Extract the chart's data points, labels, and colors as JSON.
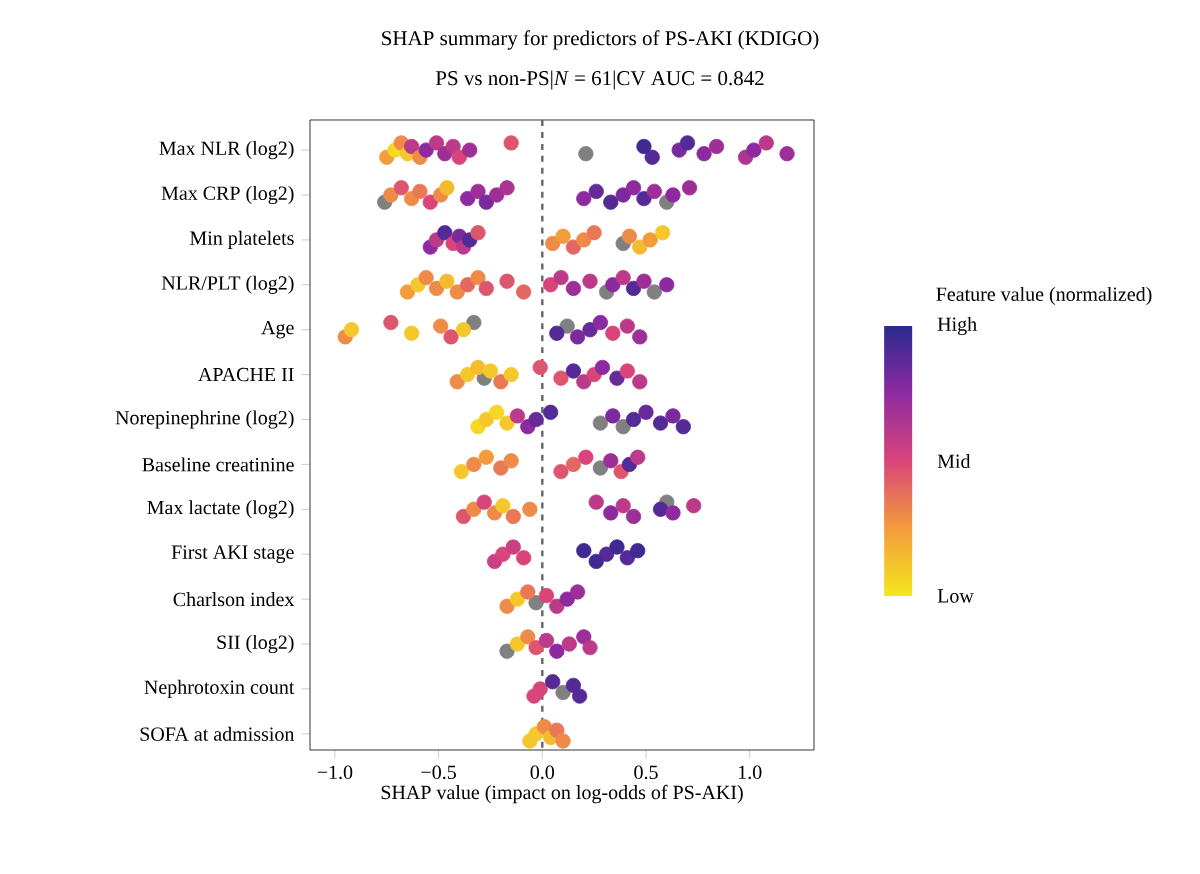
{
  "chart_data": {
    "type": "scatter",
    "title": "SHAP summary for predictors of PS-AKI (KDIGO)",
    "subtitle": "PS vs non-PS|*N* = 61|CV AUC = 0.842",
    "xlabel": "SHAP value (impact on log-odds of PS-AKI)",
    "clabel": "Feature value (normalized)",
    "orientation": "horizontal",
    "marker": "circle",
    "categories": [
      "Max NLR (log2)",
      "Max CRP (log2)",
      "Min platelets",
      "NLR/PLT (log2)",
      "Age",
      "APACHE II",
      "Norepinephrine (log2)",
      "Baseline creatinine",
      "Max lactate (log2)",
      "First AKI stage",
      "Charlson index",
      "SII (log2)",
      "Nephrotoxin count",
      "SOFA at admission"
    ],
    "series": [
      {
        "x": [
          "Max NLR (log2)",
          "Max NLR (log2)",
          "Max NLR (log2)",
          "Max NLR (log2)",
          "Max NLR (log2)",
          "Max NLR (log2)",
          "Max NLR (log2)",
          "Max NLR (log2)",
          "Max NLR (log2)",
          "Max NLR (log2)",
          "Max NLR (log2)",
          "Max NLR (log2)",
          "Max NLR (log2)",
          "Max NLR (log2)",
          "Max NLR (log2)",
          "Max NLR (log2)",
          "Max NLR (log2)",
          "Max NLR (log2)",
          "Max NLR (log2)",
          "Max NLR (log2)",
          "Max NLR (log2)",
          "Max NLR (log2)",
          "Max NLR (log2)",
          "Max NLR (log2)"
        ],
        "values": [
          -0.75,
          -0.71,
          -0.68,
          -0.65,
          -0.63,
          -0.59,
          -0.56,
          -0.51,
          -0.47,
          -0.43,
          -0.4,
          -0.35,
          -0.15,
          0.21,
          0.49,
          0.53,
          0.66,
          0.7,
          0.78,
          0.84,
          0.98,
          1.02,
          1.08,
          1.18
        ],
        "colors": [
          null,
          null,
          null,
          null,
          null,
          null,
          null,
          null,
          null,
          null,
          null,
          null,
          null,
          "#808080",
          null,
          null,
          null,
          null,
          null,
          null,
          null,
          null,
          null,
          null
        ],
        "cvalues": [
          0.25,
          0.05,
          0.3,
          0.1,
          0.6,
          0.3,
          0.75,
          0.6,
          0.7,
          0.6,
          0.5,
          0.7,
          0.45,
          null,
          0.95,
          0.9,
          0.8,
          0.9,
          0.75,
          0.7,
          0.65,
          0.75,
          0.6,
          0.7
        ]
      },
      {
        "x": [
          "Max CRP (log2)",
          "Max CRP (log2)",
          "Max CRP (log2)",
          "Max CRP (log2)",
          "Max CRP (log2)",
          "Max CRP (log2)",
          "Max CRP (log2)",
          "Max CRP (log2)",
          "Max CRP (log2)",
          "Max CRP (log2)",
          "Max CRP (log2)",
          "Max CRP (log2)",
          "Max CRP (log2)",
          "Max CRP (log2)",
          "Max CRP (log2)",
          "Max CRP (log2)",
          "Max CRP (log2)",
          "Max CRP (log2)",
          "Max CRP (log2)",
          "Max CRP (log2)",
          "Max CRP (log2)",
          "Max CRP (log2)",
          "Max CRP (log2)"
        ],
        "values": [
          -0.76,
          -0.73,
          -0.68,
          -0.63,
          -0.59,
          -0.54,
          -0.49,
          -0.46,
          -0.36,
          -0.31,
          -0.27,
          -0.22,
          -0.17,
          0.2,
          0.26,
          0.33,
          0.39,
          0.44,
          0.49,
          0.54,
          0.6,
          0.63,
          0.71
        ],
        "colors": [
          "#808080",
          null,
          null,
          null,
          null,
          null,
          null,
          null,
          null,
          null,
          null,
          null,
          null,
          null,
          null,
          null,
          null,
          null,
          null,
          null,
          "#808080",
          null,
          null
        ],
        "cvalues": [
          null,
          0.3,
          0.45,
          0.3,
          0.35,
          0.5,
          0.3,
          0.15,
          0.75,
          0.7,
          0.8,
          0.7,
          0.65,
          0.75,
          0.85,
          0.9,
          0.8,
          0.75,
          0.9,
          0.7,
          null,
          0.75,
          0.7
        ]
      },
      {
        "x": [
          "Min platelets",
          "Min platelets",
          "Min platelets",
          "Min platelets",
          "Min platelets",
          "Min platelets",
          "Min platelets",
          "Min platelets",
          "Min platelets",
          "Min platelets",
          "Min platelets",
          "Min platelets",
          "Min platelets",
          "Min platelets",
          "Min platelets",
          "Min platelets",
          "Min platelets",
          "Min platelets"
        ],
        "values": [
          -0.54,
          -0.51,
          -0.47,
          -0.43,
          -0.4,
          -0.38,
          -0.35,
          -0.31,
          0.05,
          0.1,
          0.15,
          0.2,
          0.25,
          0.39,
          0.42,
          0.47,
          0.52,
          0.58
        ],
        "colors": [
          null,
          null,
          null,
          null,
          null,
          null,
          null,
          null,
          null,
          null,
          null,
          null,
          null,
          "#808080",
          null,
          null,
          null,
          null
        ],
        "cvalues": [
          0.75,
          0.6,
          0.9,
          0.5,
          0.8,
          0.6,
          0.9,
          0.45,
          0.3,
          0.25,
          0.4,
          0.3,
          0.35,
          null,
          0.3,
          0.15,
          0.25,
          0.1
        ]
      },
      {
        "x": [
          "NLR/PLT (log2)",
          "NLR/PLT (log2)",
          "NLR/PLT (log2)",
          "NLR/PLT (log2)",
          "NLR/PLT (log2)",
          "NLR/PLT (log2)",
          "NLR/PLT (log2)",
          "NLR/PLT (log2)",
          "NLR/PLT (log2)",
          "NLR/PLT (log2)",
          "NLR/PLT (log2)",
          "NLR/PLT (log2)",
          "NLR/PLT (log2)",
          "NLR/PLT (log2)",
          "NLR/PLT (log2)",
          "NLR/PLT (log2)",
          "NLR/PLT (log2)",
          "NLR/PLT (log2)",
          "NLR/PLT (log2)",
          "NLR/PLT (log2)",
          "NLR/PLT (log2)",
          "NLR/PLT (log2)"
        ],
        "values": [
          -0.65,
          -0.6,
          -0.56,
          -0.51,
          -0.46,
          -0.41,
          -0.36,
          -0.31,
          -0.27,
          -0.17,
          -0.09,
          0.04,
          0.09,
          0.15,
          0.23,
          0.31,
          0.34,
          0.39,
          0.44,
          0.49,
          0.54,
          0.6
        ],
        "colors": [
          null,
          null,
          null,
          null,
          null,
          null,
          null,
          null,
          null,
          null,
          null,
          null,
          null,
          null,
          null,
          "#808080",
          null,
          null,
          null,
          null,
          "#808080",
          null
        ],
        "cvalues": [
          0.25,
          0.1,
          0.3,
          0.3,
          0.15,
          0.3,
          0.4,
          0.3,
          0.45,
          0.45,
          0.4,
          0.5,
          0.6,
          0.7,
          0.6,
          null,
          0.75,
          0.6,
          0.9,
          0.7,
          null,
          0.75
        ]
      },
      {
        "x": [
          "Age",
          "Age",
          "Age",
          "Age",
          "Age",
          "Age",
          "Age",
          "Age",
          "Age",
          "Age",
          "Age",
          "Age",
          "Age",
          "Age",
          "Age",
          "Age"
        ],
        "values": [
          -0.95,
          -0.92,
          -0.73,
          -0.63,
          -0.49,
          -0.44,
          -0.38,
          -0.33,
          0.07,
          0.12,
          0.17,
          0.23,
          0.28,
          0.34,
          0.41,
          0.47
        ],
        "colors": [
          null,
          null,
          null,
          null,
          null,
          null,
          null,
          "#808080",
          null,
          "#808080",
          null,
          null,
          null,
          null,
          null,
          null
        ],
        "cvalues": [
          0.3,
          0.1,
          0.45,
          0.1,
          0.3,
          0.45,
          0.1,
          null,
          0.9,
          null,
          0.8,
          0.85,
          0.75,
          0.5,
          0.6,
          0.7
        ]
      },
      {
        "x": [
          "APACHE II",
          "APACHE II",
          "APACHE II",
          "APACHE II",
          "APACHE II",
          "APACHE II",
          "APACHE II",
          "APACHE II",
          "APACHE II",
          "APACHE II",
          "APACHE II",
          "APACHE II",
          "APACHE II",
          "APACHE II",
          "APACHE II",
          "APACHE II"
        ],
        "values": [
          -0.41,
          -0.36,
          -0.31,
          -0.28,
          -0.25,
          -0.2,
          -0.15,
          -0.01,
          0.09,
          0.15,
          0.2,
          0.25,
          0.29,
          0.36,
          0.41,
          0.47
        ],
        "colors": [
          null,
          null,
          null,
          "#808080",
          null,
          null,
          null,
          null,
          null,
          null,
          null,
          null,
          null,
          null,
          null,
          null
        ],
        "cvalues": [
          0.3,
          0.1,
          0.15,
          null,
          0.1,
          0.35,
          0.1,
          0.45,
          0.45,
          0.9,
          0.6,
          0.5,
          0.75,
          0.85,
          0.5,
          0.6
        ]
      },
      {
        "x": [
          "Norepinephrine (log2)",
          "Norepinephrine (log2)",
          "Norepinephrine (log2)",
          "Norepinephrine (log2)",
          "Norepinephrine (log2)",
          "Norepinephrine (log2)",
          "Norepinephrine (log2)",
          "Norepinephrine (log2)",
          "Norepinephrine (log2)",
          "Norepinephrine (log2)",
          "Norepinephrine (log2)",
          "Norepinephrine (log2)",
          "Norepinephrine (log2)",
          "Norepinephrine (log2)",
          "Norepinephrine (log2)",
          "Norepinephrine (log2)"
        ],
        "values": [
          -0.31,
          -0.27,
          -0.22,
          -0.17,
          -0.12,
          -0.07,
          -0.03,
          0.04,
          0.28,
          0.34,
          0.39,
          0.44,
          0.5,
          0.57,
          0.63,
          0.68
        ],
        "colors": [
          null,
          null,
          null,
          null,
          null,
          null,
          null,
          null,
          "#808080",
          null,
          "#808080",
          null,
          null,
          null,
          null,
          null
        ],
        "cvalues": [
          0.05,
          0.1,
          0.05,
          0.1,
          0.6,
          0.75,
          0.85,
          0.9,
          null,
          0.8,
          null,
          0.9,
          0.85,
          0.9,
          0.8,
          0.9
        ]
      },
      {
        "x": [
          "Baseline creatinine",
          "Baseline creatinine",
          "Baseline creatinine",
          "Baseline creatinine",
          "Baseline creatinine",
          "Baseline creatinine",
          "Baseline creatinine",
          "Baseline creatinine",
          "Baseline creatinine",
          "Baseline creatinine",
          "Baseline creatinine",
          "Baseline creatinine",
          "Baseline creatinine"
        ],
        "values": [
          -0.39,
          -0.33,
          -0.27,
          -0.2,
          -0.15,
          0.09,
          0.15,
          0.21,
          0.28,
          0.33,
          0.38,
          0.42,
          0.46
        ],
        "colors": [
          null,
          null,
          null,
          null,
          null,
          null,
          null,
          null,
          "#808080",
          null,
          null,
          null,
          null
        ],
        "cvalues": [
          0.1,
          0.3,
          0.25,
          0.35,
          0.3,
          0.45,
          0.4,
          0.5,
          null,
          0.7,
          0.45,
          0.9,
          0.6
        ]
      },
      {
        "x": [
          "Max lactate (log2)",
          "Max lactate (log2)",
          "Max lactate (log2)",
          "Max lactate (log2)",
          "Max lactate (log2)",
          "Max lactate (log2)",
          "Max lactate (log2)",
          "Max lactate (log2)",
          "Max lactate (log2)",
          "Max lactate (log2)",
          "Max lactate (log2)",
          "Max lactate (log2)",
          "Max lactate (log2)",
          "Max lactate (log2)",
          "Max lactate (log2)"
        ],
        "values": [
          -0.38,
          -0.33,
          -0.28,
          -0.23,
          -0.19,
          -0.14,
          -0.06,
          0.26,
          0.33,
          0.39,
          0.44,
          0.57,
          0.6,
          0.63,
          0.73
        ],
        "colors": [
          null,
          null,
          null,
          null,
          null,
          null,
          null,
          null,
          null,
          null,
          null,
          null,
          "#808080",
          null,
          null
        ],
        "cvalues": [
          0.45,
          0.3,
          0.5,
          0.3,
          0.1,
          0.35,
          0.3,
          0.6,
          0.75,
          0.6,
          0.7,
          0.9,
          null,
          0.75,
          0.6
        ]
      },
      {
        "x": [
          "First AKI stage",
          "First AKI stage",
          "First AKI stage",
          "First AKI stage",
          "First AKI stage",
          "First AKI stage",
          "First AKI stage",
          "First AKI stage",
          "First AKI stage",
          "First AKI stage"
        ],
        "values": [
          -0.23,
          -0.19,
          -0.14,
          -0.09,
          0.2,
          0.26,
          0.31,
          0.36,
          0.41,
          0.46
        ],
        "colors": [
          null,
          null,
          null,
          null,
          null,
          null,
          null,
          null,
          null,
          null
        ],
        "cvalues": [
          0.55,
          0.5,
          0.55,
          0.5,
          0.95,
          0.95,
          0.9,
          0.95,
          0.9,
          0.95
        ]
      },
      {
        "x": [
          "Charlson index",
          "Charlson index",
          "Charlson index",
          "Charlson index",
          "Charlson index",
          "Charlson index",
          "Charlson index",
          "Charlson index"
        ],
        "values": [
          -0.17,
          -0.12,
          -0.07,
          -0.03,
          0.02,
          0.07,
          0.12,
          0.17
        ],
        "colors": [
          null,
          null,
          null,
          "#808080",
          null,
          null,
          null,
          null
        ],
        "cvalues": [
          0.3,
          0.1,
          0.35,
          null,
          0.5,
          0.6,
          0.75,
          0.7
        ]
      },
      {
        "x": [
          "SII (log2)",
          "SII (log2)",
          "SII (log2)",
          "SII (log2)",
          "SII (log2)",
          "SII (log2)",
          "SII (log2)",
          "SII (log2)",
          "SII (log2)"
        ],
        "values": [
          -0.17,
          -0.12,
          -0.07,
          -0.03,
          0.02,
          0.07,
          0.13,
          0.2,
          0.23
        ],
        "colors": [
          "#808080",
          null,
          null,
          null,
          null,
          null,
          null,
          null,
          null
        ],
        "cvalues": [
          null,
          0.1,
          0.3,
          0.45,
          0.6,
          0.75,
          0.6,
          0.7,
          0.6
        ]
      },
      {
        "x": [
          "Nephrotoxin count",
          "Nephrotoxin count",
          "Nephrotoxin count",
          "Nephrotoxin count",
          "Nephrotoxin count",
          "Nephrotoxin count"
        ],
        "values": [
          -0.04,
          -0.01,
          0.05,
          0.1,
          0.15,
          0.18
        ],
        "colors": [
          null,
          null,
          null,
          "#808080",
          null,
          null
        ],
        "cvalues": [
          0.5,
          0.5,
          0.9,
          null,
          0.9,
          0.9
        ]
      },
      {
        "x": [
          "SOFA at admission",
          "SOFA at admission",
          "SOFA at admission",
          "SOFA at admission",
          "SOFA at admission",
          "SOFA at admission"
        ],
        "values": [
          -0.06,
          -0.03,
          0.01,
          0.04,
          0.07,
          0.1
        ],
        "colors": [
          null,
          null,
          null,
          null,
          null,
          null
        ],
        "cvalues": [
          0.1,
          0.1,
          0.3,
          0.15,
          0.35,
          0.3
        ]
      }
    ],
    "xlim": [
      -1.12,
      1.31
    ],
    "xticks": [
      {
        "value": -1,
        "label": "−1.0"
      },
      {
        "value": -0.5,
        "label": "−0.5"
      },
      {
        "value": 0,
        "label": "0.0"
      },
      {
        "value": 0.5,
        "label": "0.5"
      },
      {
        "value": 1,
        "label": "1.0"
      }
    ],
    "clim": [
      0,
      1
    ],
    "cticks": [
      {
        "value": 0,
        "label": "Low"
      },
      {
        "value": 0.5,
        "label": "Mid"
      },
      {
        "value": 1,
        "label": "High"
      }
    ],
    "ref_lines": [
      {
        "axis": "x",
        "value": 0,
        "line_style": "dashed",
        "color": "#666666"
      }
    ]
  }
}
